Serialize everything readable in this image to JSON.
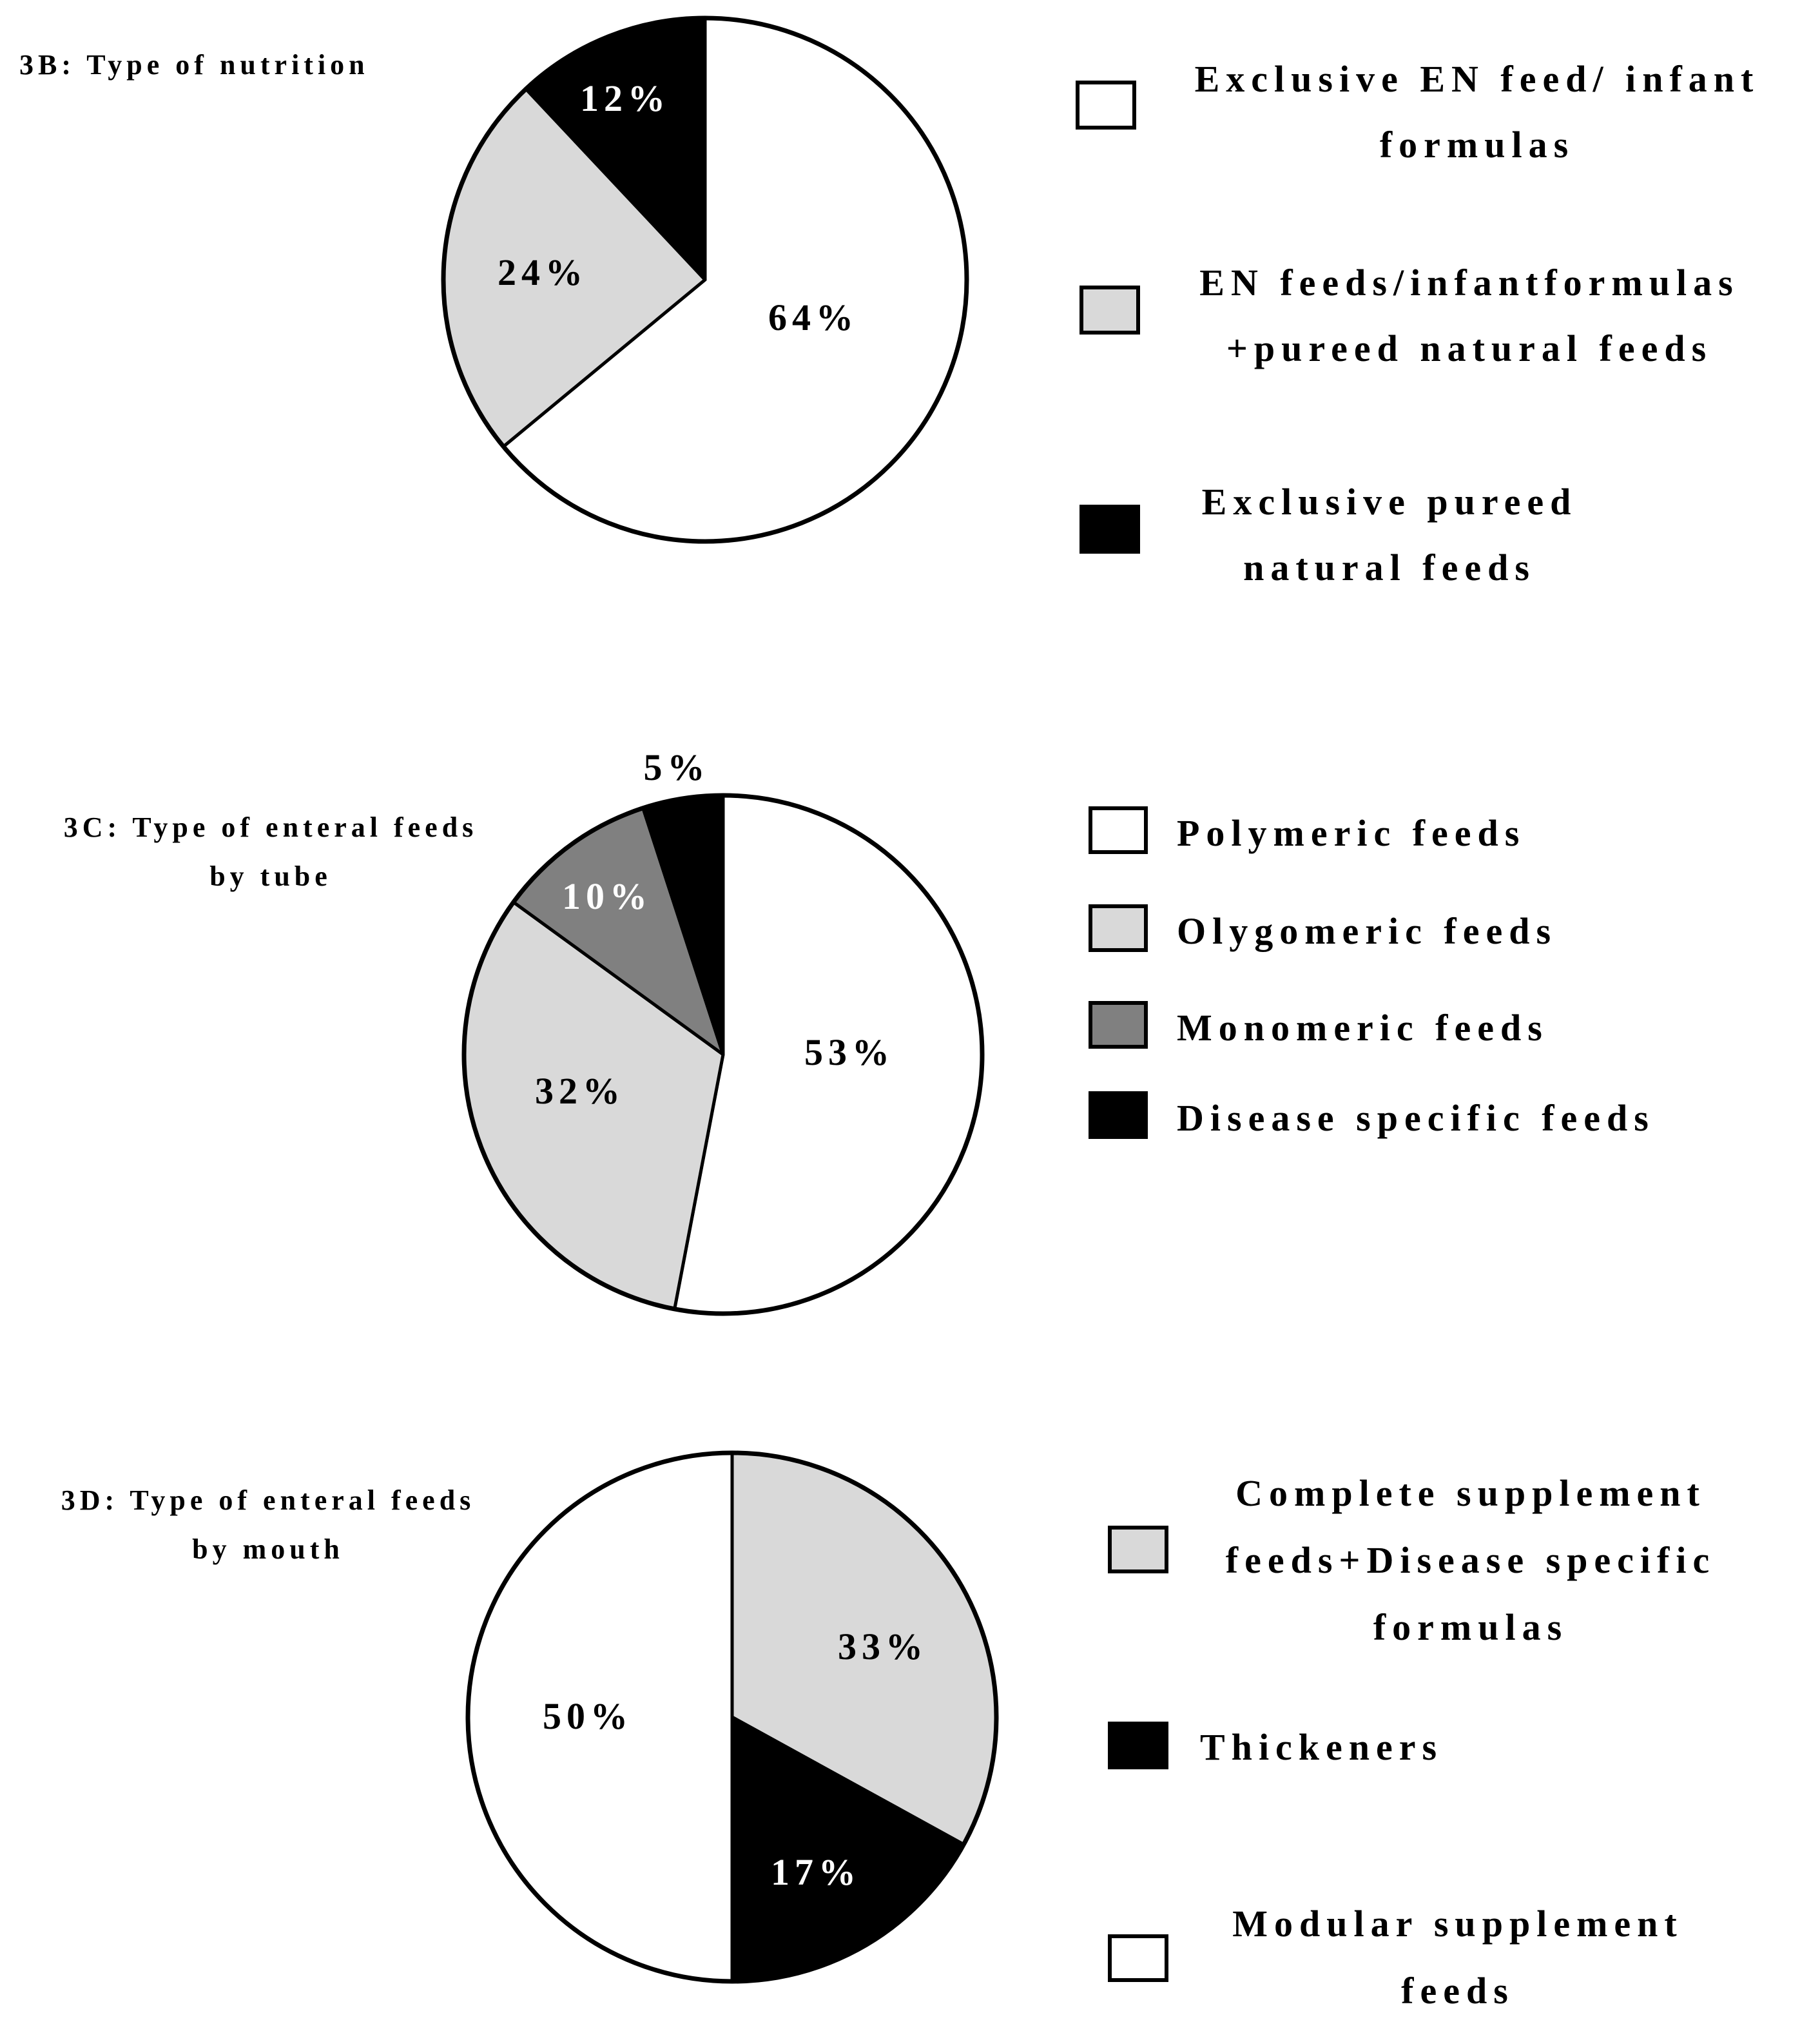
{
  "chart_data": [
    {
      "type": "pie",
      "title_lines": [
        "3B: Type of nutrition"
      ],
      "slices": [
        {
          "label": "Exclusive EN feed/ infant formulas",
          "label_lines": [
            "Exclusive EN feed/ infant",
            "formulas"
          ],
          "value": 64,
          "value_label": "64%",
          "color": "#ffffff",
          "text_color": "#000000"
        },
        {
          "label": "EN feeds/infantformulas +pureed natural feeds",
          "label_lines": [
            "EN feeds/infantformulas",
            "+pureed natural feeds"
          ],
          "value": 24,
          "value_label": "24%",
          "color": "#d9d9d9",
          "text_color": "#000000"
        },
        {
          "label": "Exclusive pureed natural feeds",
          "label_lines": [
            "Exclusive pureed",
            "natural feeds"
          ],
          "value": 12,
          "value_label": "12%",
          "color": "#000000",
          "text_color": "#ffffff"
        }
      ]
    },
    {
      "type": "pie",
      "title_lines": [
        "3C: Type of enteral feeds",
        "by tube"
      ],
      "slices": [
        {
          "label": "Polymeric feeds",
          "label_lines": [
            "Polymeric feeds"
          ],
          "value": 53,
          "value_label": "53%",
          "color": "#ffffff",
          "text_color": "#000000"
        },
        {
          "label": "Olygomeric feeds",
          "label_lines": [
            "Olygomeric feeds"
          ],
          "value": 32,
          "value_label": "32%",
          "color": "#d9d9d9",
          "text_color": "#000000"
        },
        {
          "label": "Monomeric feeds",
          "label_lines": [
            "Monomeric feeds"
          ],
          "value": 10,
          "value_label": "10%",
          "color": "#808080",
          "text_color": "#ffffff"
        },
        {
          "label": "Disease specific feeds",
          "label_lines": [
            "Disease specific feeds"
          ],
          "value": 5,
          "value_label": "5%",
          "color": "#000000",
          "text_color": "#000000"
        }
      ]
    },
    {
      "type": "pie",
      "title_lines": [
        "3D: Type of enteral feeds",
        "by mouth"
      ],
      "slices": [
        {
          "label": "Complete supplement feeds+Disease specific formulas",
          "label_lines": [
            "Complete supplement",
            "feeds+Disease specific",
            "formulas"
          ],
          "value": 33,
          "value_label": "33%",
          "color": "#d9d9d9",
          "text_color": "#000000"
        },
        {
          "label": "Thickeners",
          "label_lines": [
            "Thickeners"
          ],
          "value": 17,
          "value_label": "17%",
          "color": "#000000",
          "text_color": "#ffffff"
        },
        {
          "label": "Modular supplement feeds",
          "label_lines": [
            "Modular supplement",
            "feeds"
          ],
          "value": 50,
          "value_label": "50%",
          "color": "#ffffff",
          "text_color": "#000000"
        }
      ]
    }
  ]
}
